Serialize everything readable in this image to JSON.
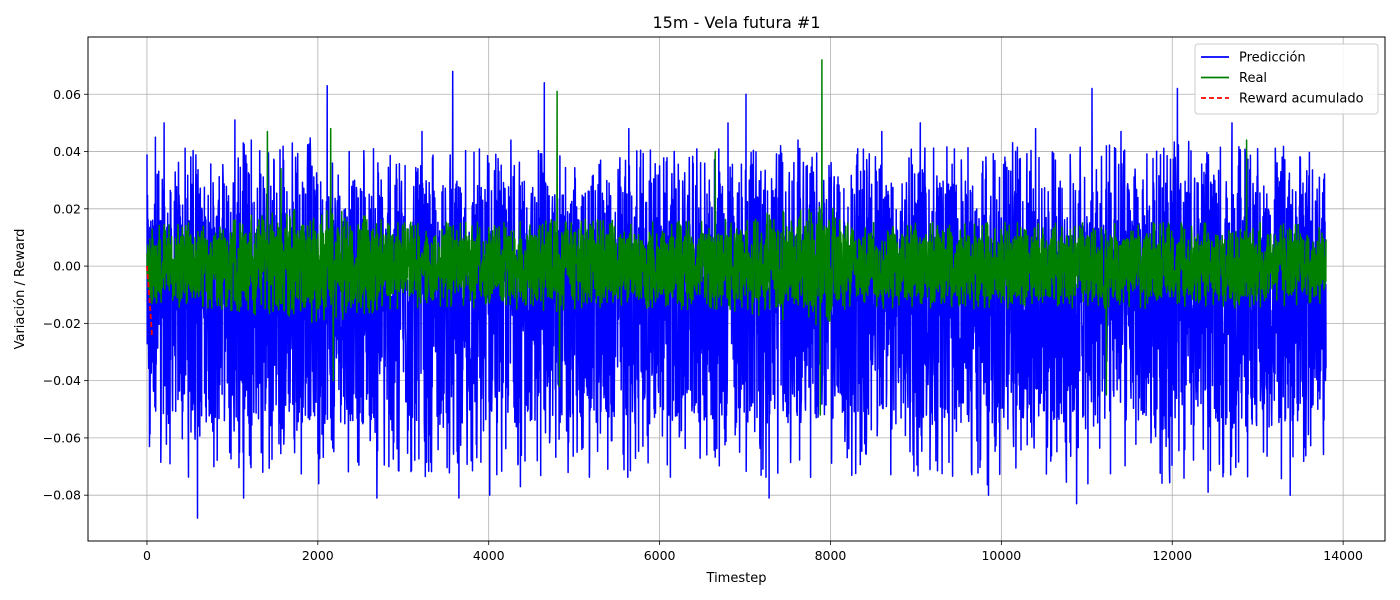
{
  "chart_data": {
    "type": "line",
    "title": "15m - Vela futura #1",
    "xlabel": "Timestep",
    "ylabel": "Variación / Reward",
    "xlim": [
      -690,
      14490
    ],
    "ylim": [
      -0.096,
      0.08
    ],
    "x_ticks": [
      0,
      2000,
      4000,
      6000,
      8000,
      10000,
      12000,
      14000
    ],
    "y_ticks": [
      -0.08,
      -0.06,
      -0.04,
      -0.02,
      0.0,
      0.02,
      0.04,
      0.06
    ],
    "x_tick_labels": [
      "0",
      "2000",
      "4000",
      "6000",
      "8000",
      "10000",
      "12000",
      "14000"
    ],
    "y_tick_labels": [
      "−0.08",
      "−0.06",
      "−0.04",
      "−0.02",
      "0.00",
      "0.02",
      "0.04",
      "0.06"
    ],
    "grid": true,
    "legend_position": "top-right",
    "x_range": [
      0,
      13800
    ],
    "series": [
      {
        "name": "Predicción",
        "color": "#0000ff",
        "style": "solid",
        "envelope": {
          "x": [
            0,
            500,
            1000,
            1500,
            2000,
            2500,
            3000,
            3500,
            4000,
            4500,
            5000,
            5500,
            6000,
            6500,
            7000,
            7500,
            8000,
            8500,
            9000,
            9500,
            10000,
            10500,
            11000,
            11500,
            12000,
            12500,
            13000,
            13500,
            13800
          ],
          "upper": [
            0.025,
            0.03,
            0.032,
            0.03,
            0.033,
            0.03,
            0.028,
            0.03,
            0.03,
            0.03,
            0.027,
            0.03,
            0.03,
            0.03,
            0.03,
            0.03,
            0.028,
            0.03,
            0.03,
            0.03,
            0.032,
            0.03,
            0.031,
            0.03,
            0.032,
            0.03,
            0.03,
            0.03,
            0.028
          ],
          "lower": [
            -0.05,
            -0.055,
            -0.055,
            -0.055,
            -0.055,
            -0.055,
            -0.055,
            -0.055,
            -0.055,
            -0.055,
            -0.055,
            -0.055,
            -0.055,
            -0.055,
            -0.055,
            -0.055,
            -0.055,
            -0.055,
            -0.055,
            -0.055,
            -0.058,
            -0.055,
            -0.058,
            -0.055,
            -0.058,
            -0.055,
            -0.058,
            -0.055,
            -0.05
          ]
        },
        "spikes": [
          [
            0,
            0.039
          ],
          [
            30,
            -0.063
          ],
          [
            100,
            0.045
          ],
          [
            200,
            0.05
          ],
          [
            590,
            -0.088
          ],
          [
            1030,
            0.051
          ],
          [
            1130,
            -0.081
          ],
          [
            1220,
            0.044
          ],
          [
            1700,
            0.043
          ],
          [
            2010,
            -0.076
          ],
          [
            2110,
            0.063
          ],
          [
            2690,
            -0.081
          ],
          [
            3220,
            0.047
          ],
          [
            3580,
            0.068
          ],
          [
            3650,
            -0.081
          ],
          [
            4010,
            -0.08
          ],
          [
            4260,
            0.044
          ],
          [
            4370,
            -0.077
          ],
          [
            4650,
            0.064
          ],
          [
            5180,
            -0.066
          ],
          [
            5640,
            0.048
          ],
          [
            6170,
            0.04
          ],
          [
            6800,
            0.05
          ],
          [
            7010,
            0.06
          ],
          [
            7280,
            -0.081
          ],
          [
            7620,
            0.044
          ],
          [
            8400,
            -0.062
          ],
          [
            8600,
            0.047
          ],
          [
            9050,
            0.05
          ],
          [
            9850,
            -0.08
          ],
          [
            10400,
            0.048
          ],
          [
            10880,
            -0.083
          ],
          [
            11060,
            0.062
          ],
          [
            11400,
            0.047
          ],
          [
            12060,
            0.062
          ],
          [
            12420,
            -0.079
          ],
          [
            12700,
            0.05
          ],
          [
            13000,
            0.041
          ],
          [
            13380,
            -0.08
          ],
          [
            13500,
            0.038
          ]
        ]
      },
      {
        "name": "Real",
        "color": "#008000",
        "style": "solid",
        "envelope": {
          "x": [
            0,
            1000,
            2000,
            3000,
            4000,
            5000,
            6000,
            7000,
            7800,
            8000,
            8200,
            9000,
            10000,
            11000,
            12000,
            13000,
            13800
          ],
          "upper": [
            0.01,
            0.012,
            0.015,
            0.011,
            0.011,
            0.012,
            0.011,
            0.012,
            0.016,
            0.015,
            0.011,
            0.011,
            0.011,
            0.011,
            0.011,
            0.011,
            0.01
          ],
          "lower": [
            -0.01,
            -0.012,
            -0.015,
            -0.011,
            -0.011,
            -0.012,
            -0.011,
            -0.012,
            -0.016,
            -0.015,
            -0.011,
            -0.011,
            -0.011,
            -0.011,
            -0.011,
            -0.011,
            -0.01
          ]
        },
        "spikes": [
          [
            1410,
            0.047
          ],
          [
            2150,
            0.048
          ],
          [
            2180,
            -0.04
          ],
          [
            4800,
            0.061
          ],
          [
            4830,
            -0.042
          ],
          [
            7900,
            0.072
          ],
          [
            7880,
            -0.052
          ],
          [
            6650,
            0.04
          ],
          [
            12870,
            0.044
          ],
          [
            1570,
            0.034
          ],
          [
            11230,
            -0.045
          ]
        ]
      },
      {
        "name": "Reward acumulado",
        "color": "#ff0000",
        "style": "dashed",
        "x": [
          0,
          10,
          20,
          30,
          40,
          50,
          60
        ],
        "y": [
          0.0,
          -0.004,
          -0.008,
          -0.012,
          -0.016,
          -0.02,
          -0.025
        ]
      }
    ]
  }
}
